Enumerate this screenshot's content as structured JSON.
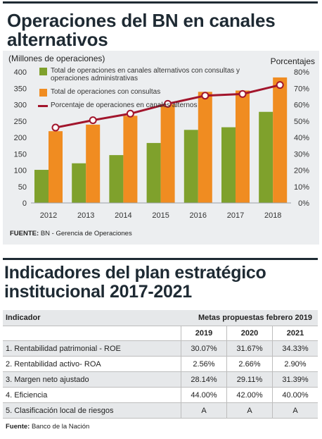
{
  "chart": {
    "title": "Operaciones del BN en canales alternativos",
    "source_label": "FUENTE:",
    "source_text": "BN - Gerencia de Operaciones"
  },
  "chart_data": {
    "type": "bar",
    "categories": [
      "2012",
      "2013",
      "2014",
      "2015",
      "2016",
      "2017",
      "2018"
    ],
    "series": [
      {
        "name": "Total de operaciones en canales alternativos con consultas y operaciones administrativas",
        "type": "bar",
        "axis": "left",
        "color": "#7fa12c",
        "values": [
          101,
          121,
          146,
          183,
          223,
          231,
          278
        ]
      },
      {
        "name": "Total de operaciones con consultas",
        "type": "bar",
        "axis": "left",
        "color": "#f08c21",
        "values": [
          219,
          239,
          266,
          301,
          339,
          343,
          383
        ]
      },
      {
        "name": "Porcentaje de operaciones en canales alternos",
        "type": "line",
        "axis": "right",
        "color": "#a2152c",
        "values": [
          46,
          50.5,
          54.5,
          60.5,
          65.5,
          66.5,
          72
        ]
      }
    ],
    "ylabel": "(Millones de operaciones)",
    "ylim": [
      0,
      400
    ],
    "yticks": [
      "0",
      "50",
      "100",
      "150",
      "200",
      "250",
      "300",
      "350",
      "400"
    ],
    "y2label": "Porcentajes",
    "y2lim": [
      0,
      80
    ],
    "y2ticks": [
      "0%",
      "10%",
      "20%",
      "30%",
      "40%",
      "50%",
      "60%",
      "70%",
      "80%"
    ],
    "grid": false,
    "legend": "top-left"
  },
  "plan": {
    "title": "Indicadores del plan estratégico institucional 2017-2021",
    "header_indicator": "Indicador",
    "header_metas": "Metas propuestas febrero 2019",
    "years": [
      "2019",
      "2020",
      "2021"
    ],
    "rows": [
      {
        "label": "1. Rentabilidad patrimonial - ROE",
        "values": [
          "30.07%",
          "31.67%",
          "34.33%"
        ]
      },
      {
        "label": "2. Rentabilidad activo- ROA",
        "values": [
          "2.56%",
          "2.66%",
          "2.90%"
        ]
      },
      {
        "label": "3. Margen neto ajustado",
        "values": [
          "28.14%",
          "29.11%",
          "31.39%"
        ]
      },
      {
        "label": "4. Eficiencia",
        "values": [
          "44.00%",
          "42.00%",
          "40.00%"
        ]
      },
      {
        "label": "5. Clasificación local de riesgos",
        "values": [
          "A",
          "A",
          "A"
        ]
      }
    ],
    "source_label": "Fuente:",
    "source_text": "Banco de la Nación"
  }
}
